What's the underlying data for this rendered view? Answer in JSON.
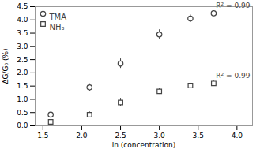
{
  "chart_data": {
    "type": "scatter",
    "xlabel": "ln (concentration)",
    "ylabel": "ΔG/G₀ (%)",
    "xlim": [
      1.4,
      4.2
    ],
    "ylim": [
      0.0,
      4.5
    ],
    "xticks": [
      1.5,
      {
        "value": 2.0,
        "label": "2.0"
      },
      2.5,
      {
        "value": 3.0,
        "label": "3.0"
      },
      3.5,
      {
        "value": 4.0,
        "label": "4.0"
      }
    ],
    "yticks": [
      {
        "value": 0.0,
        "label": "0.0"
      },
      0.5,
      {
        "value": 1.0,
        "label": "1.0"
      },
      1.5,
      {
        "value": 2.0,
        "label": "2.0"
      },
      2.5,
      {
        "value": 3.0,
        "label": "3.0"
      },
      3.5,
      {
        "value": 4.0,
        "label": "4.0"
      },
      4.5
    ],
    "grid": false,
    "legend": "top-left",
    "series": [
      {
        "name": "TMA",
        "color": "#444444",
        "marker": "circle",
        "x": [
          1.6,
          2.1,
          2.5,
          3.0,
          3.4,
          3.7
        ],
        "values": [
          0.42,
          1.45,
          2.35,
          3.45,
          4.05,
          4.25
        ],
        "yerr": [
          0.09,
          0.14,
          0.18,
          0.18,
          0.14,
          0.1
        ]
      },
      {
        "name": "NH₃",
        "color": "#444444",
        "marker": "square",
        "x": [
          1.6,
          2.1,
          2.5,
          3.0,
          3.4,
          3.7
        ],
        "values": [
          0.15,
          0.42,
          0.88,
          1.3,
          1.52,
          1.6
        ],
        "yerr": [
          0.05,
          0.11,
          0.16,
          0.11,
          0.09,
          0.09
        ]
      }
    ],
    "annotations": [
      "R² = 0.99",
      "R² = 0.99"
    ]
  }
}
